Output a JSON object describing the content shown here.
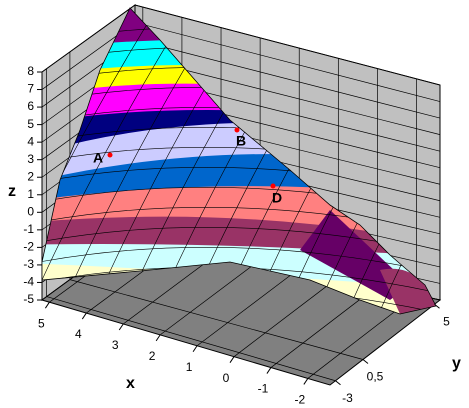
{
  "chart_data": {
    "type": "surface3d",
    "xlabel": "x",
    "ylabel": "y",
    "zlabel": "z",
    "zlim": [
      -5,
      8
    ],
    "zticks": [
      -5,
      -4,
      -3,
      -2,
      -1,
      0,
      1,
      2,
      3,
      4,
      5,
      6,
      7,
      8
    ],
    "xlim": [
      5.2,
      -2.6
    ],
    "xticks": [
      5,
      4,
      3,
      2,
      1,
      0,
      -1,
      -2
    ],
    "yticks": [
      5,
      {
        "value": 0.5,
        "label": "0,5"
      },
      -3
    ],
    "annotations": [
      "A",
      "B",
      "D"
    ]
  }
}
